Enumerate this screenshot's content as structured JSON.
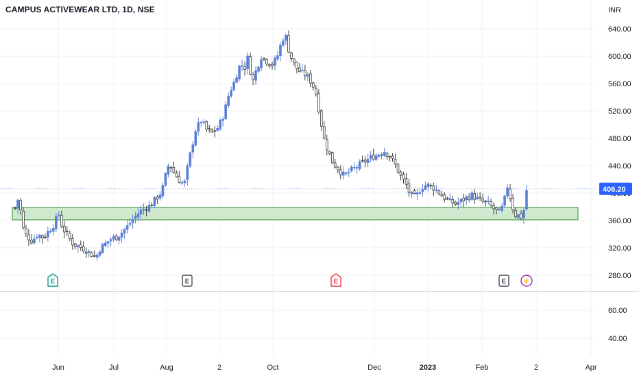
{
  "header": {
    "title": "CAMPUS ACTIVEWEAR LTD, 1D, NSE",
    "currency": "INR"
  },
  "colors": {
    "candle_up": "#5b7fd6",
    "candle_down": "#3a3a3a",
    "zone_fill": "#cfe9cf",
    "zone_border": "#2e8b2e",
    "last_price_bg": "#2962ff",
    "grid": "#eef0f3",
    "earnings_green": "#089981",
    "earnings_gray": "#434651",
    "earnings_red": "#f23645",
    "dividend_purple": "#9c27b0"
  },
  "chart_data": {
    "type": "candlestick",
    "title": "CAMPUS ACTIVEWEAR LTD, 1D, NSE",
    "y_ticks": [
      640,
      600,
      560,
      520,
      480,
      440,
      400,
      360,
      320,
      280
    ],
    "y_tick_labels": [
      "640.00",
      "600.00",
      "560.00",
      "520.00",
      "480.00",
      "440.00",
      "400.00",
      "360.00",
      "320.00",
      "280.00"
    ],
    "lower_y_ticks": [
      60,
      40
    ],
    "lower_y_tick_labels": [
      "60.00",
      "40.00"
    ],
    "x_tick_labels": [
      "Jun",
      "Jul",
      "Aug",
      "2",
      "Oct",
      "Dec",
      "2023",
      "Feb",
      "2",
      "Apr"
    ],
    "last_price": 406.2,
    "last_price_label": "406.20",
    "support_zone": {
      "low": 361,
      "high": 379
    },
    "events": [
      {
        "label": "E",
        "kind": "earnings-green"
      },
      {
        "label": "E",
        "kind": "earnings-gray"
      },
      {
        "label": "E",
        "kind": "earnings-red"
      },
      {
        "label": "E",
        "kind": "earnings-gray"
      },
      {
        "label": "⚡",
        "kind": "split"
      }
    ],
    "price_path": [
      [
        0,
        378
      ],
      [
        2,
        395
      ],
      [
        4,
        350
      ],
      [
        6,
        338
      ],
      [
        9,
        330
      ],
      [
        12,
        340
      ],
      [
        15,
        335
      ],
      [
        18,
        345
      ],
      [
        21,
        355
      ],
      [
        23,
        372
      ],
      [
        25,
        350
      ],
      [
        28,
        338
      ],
      [
        31,
        325
      ],
      [
        34,
        322
      ],
      [
        37,
        318
      ],
      [
        40,
        312
      ],
      [
        43,
        306
      ],
      [
        45,
        318
      ],
      [
        48,
        326
      ],
      [
        51,
        333
      ],
      [
        54,
        336
      ],
      [
        57,
        343
      ],
      [
        60,
        352
      ],
      [
        63,
        363
      ],
      [
        66,
        372
      ],
      [
        69,
        378
      ],
      [
        72,
        382
      ],
      [
        75,
        392
      ],
      [
        78,
        402
      ],
      [
        80,
        425
      ],
      [
        82,
        445
      ],
      [
        84,
        432
      ],
      [
        86,
        424
      ],
      [
        88,
        416
      ],
      [
        90,
        413
      ],
      [
        93,
        455
      ],
      [
        96,
        492
      ],
      [
        99,
        506
      ],
      [
        102,
        492
      ],
      [
        105,
        488
      ],
      [
        108,
        496
      ],
      [
        111,
        515
      ],
      [
        114,
        548
      ],
      [
        116,
        558
      ],
      [
        118,
        575
      ],
      [
        120,
        590
      ],
      [
        122,
        582
      ],
      [
        124,
        600
      ],
      [
        126,
        560
      ],
      [
        128,
        578
      ],
      [
        131,
        600
      ],
      [
        134,
        592
      ],
      [
        137,
        587
      ],
      [
        140,
        603
      ],
      [
        142,
        625
      ],
      [
        144,
        628
      ],
      [
        146,
        603
      ],
      [
        149,
        585
      ],
      [
        152,
        576
      ],
      [
        155,
        572
      ],
      [
        158,
        560
      ],
      [
        160,
        545
      ],
      [
        162,
        515
      ],
      [
        164,
        482
      ],
      [
        166,
        465
      ],
      [
        169,
        444
      ],
      [
        172,
        435
      ],
      [
        175,
        425
      ],
      [
        178,
        432
      ],
      [
        181,
        437
      ],
      [
        184,
        443
      ],
      [
        187,
        448
      ],
      [
        190,
        453
      ],
      [
        193,
        456
      ],
      [
        196,
        462
      ],
      [
        199,
        455
      ],
      [
        202,
        442
      ],
      [
        205,
        425
      ],
      [
        208,
        412
      ],
      [
        210,
        398
      ],
      [
        213,
        394
      ],
      [
        216,
        408
      ],
      [
        219,
        412
      ],
      [
        222,
        409
      ],
      [
        225,
        402
      ],
      [
        228,
        394
      ],
      [
        231,
        388
      ],
      [
        234,
        384
      ],
      [
        237,
        388
      ],
      [
        240,
        393
      ],
      [
        243,
        397
      ],
      [
        246,
        391
      ],
      [
        249,
        387
      ],
      [
        252,
        384
      ],
      [
        255,
        376
      ],
      [
        258,
        371
      ],
      [
        260,
        387
      ],
      [
        262,
        412
      ],
      [
        264,
        384
      ],
      [
        266,
        368
      ],
      [
        268,
        367
      ],
      [
        270,
        364
      ],
      [
        272,
        404
      ]
    ]
  }
}
